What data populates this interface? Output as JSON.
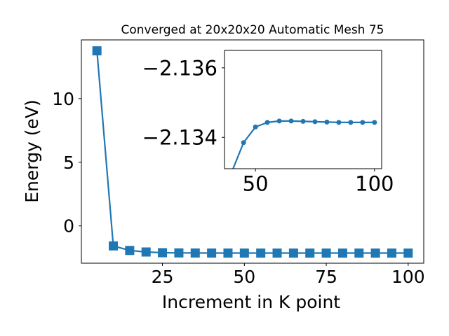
{
  "chart_data": [
    {
      "type": "line",
      "title": "Converged at 20x20x20 Automatic Mesh 75",
      "xlabel": "Increment in K point",
      "ylabel": "Energy (eV)",
      "x": [
        5,
        10,
        15,
        20,
        25,
        30,
        35,
        40,
        45,
        50,
        55,
        60,
        65,
        70,
        75,
        80,
        85,
        90,
        95,
        100
      ],
      "series": [
        {
          "marker": "square",
          "color": "#1f77b4",
          "values": [
            13.75,
            -1.57,
            -1.93,
            -2.05,
            -2.105,
            -2.12,
            -2.127,
            -2.1303,
            -2.1326,
            -2.1343,
            -2.1347,
            -2.1349,
            -2.1349,
            -2.1348,
            -2.1348,
            -2.1347,
            -2.1347,
            -2.1347,
            -2.1347,
            -2.1347
          ]
        }
      ],
      "xlim": [
        0.25,
        104.75
      ],
      "ylim": [
        -2.93,
        14.61
      ],
      "xticks": [
        25,
        50,
        75,
        100
      ],
      "xtick_labels": [
        "25",
        "50",
        "75",
        "100"
      ],
      "yticks": [
        0,
        5,
        10
      ],
      "ytick_labels": [
        "0",
        "5",
        "10"
      ],
      "grid": false
    },
    {
      "type": "line",
      "title": "",
      "x": [
        40,
        45,
        50,
        55,
        60,
        65,
        70,
        75,
        80,
        85,
        90,
        95,
        100
      ],
      "series": [
        {
          "marker": "circle",
          "color": "#1f77b4",
          "values": [
            -2.133,
            -2.13385,
            -2.1343,
            -2.13443,
            -2.13447,
            -2.13447,
            -2.13446,
            -2.13445,
            -2.13444,
            -2.13443,
            -2.13443,
            -2.13443,
            -2.13443
          ]
        }
      ],
      "xlim": [
        37.0,
        103.0
      ],
      "ylim": [
        -2.1331,
        -2.1365
      ],
      "xticks": [
        50,
        100
      ],
      "xtick_labels": [
        "50",
        "100"
      ],
      "yticks": [
        -2.134,
        -2.136
      ],
      "ytick_labels": [
        "−2.134",
        "−2.136"
      ],
      "grid": false
    }
  ]
}
